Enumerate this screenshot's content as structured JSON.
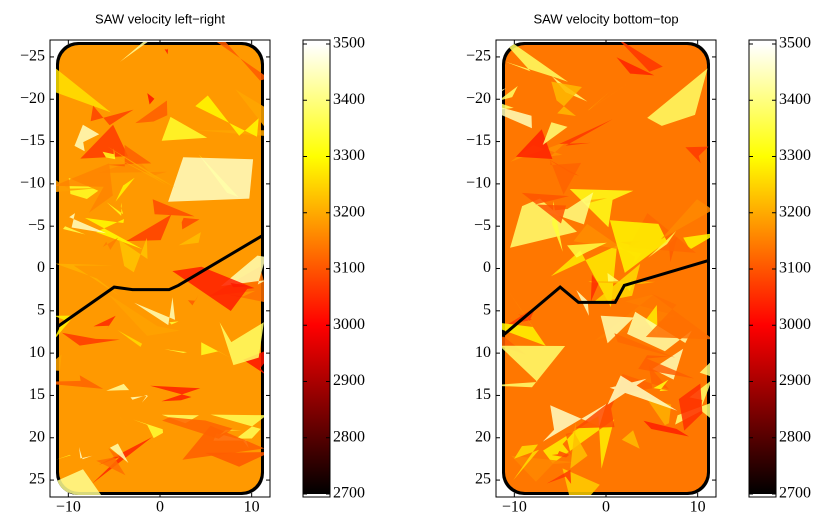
{
  "chart_data": [
    {
      "type": "image",
      "title": "SAW velocity left−right",
      "colormap": "hot",
      "xlim": [
        -12,
        12
      ],
      "ylim": [
        -27,
        27
      ],
      "y_reversed": true,
      "xticks": [
        {
          "value": -10,
          "label": "−10"
        },
        0,
        10
      ],
      "yticks": [
        {
          "value": -25,
          "label": "−25"
        },
        {
          "value": -20,
          "label": "−20"
        },
        {
          "value": -15,
          "label": "−15"
        },
        {
          "value": -10,
          "label": "−10"
        },
        {
          "value": -5,
          "label": "−5"
        },
        0,
        5,
        10,
        15,
        20,
        25
      ],
      "colorbar": {
        "clim": [
          2700,
          3500
        ],
        "ticks": [
          2700,
          2800,
          2900,
          3000,
          3100,
          3200,
          3300,
          3400,
          3500
        ]
      }
    },
    {
      "type": "image",
      "title": "SAW velocity bottom−top",
      "colormap": "hot",
      "xlim": [
        -12,
        12
      ],
      "ylim": [
        -27,
        27
      ],
      "y_reversed": true,
      "xticks": [
        {
          "value": -10,
          "label": "−10"
        },
        0,
        10
      ],
      "yticks": [
        {
          "value": -25,
          "label": "−25"
        },
        {
          "value": -20,
          "label": "−20"
        },
        {
          "value": -15,
          "label": "−15"
        },
        {
          "value": -10,
          "label": "−10"
        },
        {
          "value": -5,
          "label": "−5"
        },
        0,
        5,
        10,
        15,
        20,
        25
      ],
      "colorbar": {
        "clim": [
          2700,
          3500
        ],
        "ticks": [
          2700,
          2800,
          2900,
          3000,
          3100,
          3200,
          3300,
          3400,
          3500
        ]
      }
    }
  ]
}
